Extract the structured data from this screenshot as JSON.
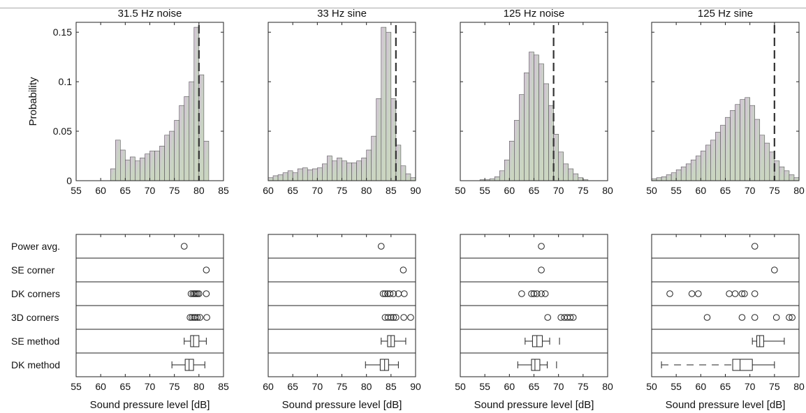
{
  "chart_data": [
    {
      "type": "bar",
      "title": "31.5 Hz noise",
      "ylabel": "Probability",
      "xlim": [
        55,
        85
      ],
      "ylim": [
        0,
        0.16
      ],
      "xticks": [
        55,
        60,
        65,
        70,
        75,
        80,
        85
      ],
      "yticks": [
        0,
        0.05,
        0.1,
        0.15
      ],
      "ytick_labels": [
        "0",
        "0.05",
        "0.1",
        "0.15"
      ],
      "bin_width": 1,
      "bins": [
        {
          "x": 55.5,
          "y": 0
        },
        {
          "x": 56.5,
          "y": 0
        },
        {
          "x": 57.5,
          "y": 0
        },
        {
          "x": 58.5,
          "y": 0
        },
        {
          "x": 59.5,
          "y": 0
        },
        {
          "x": 60.5,
          "y": 0
        },
        {
          "x": 61.5,
          "y": 0
        },
        {
          "x": 62.5,
          "y": 0.012
        },
        {
          "x": 63.5,
          "y": 0.041
        },
        {
          "x": 64.5,
          "y": 0.031
        },
        {
          "x": 65.5,
          "y": 0.021
        },
        {
          "x": 66.5,
          "y": 0.024
        },
        {
          "x": 67.5,
          "y": 0.02
        },
        {
          "x": 68.5,
          "y": 0.023
        },
        {
          "x": 69.5,
          "y": 0.027
        },
        {
          "x": 70.5,
          "y": 0.03
        },
        {
          "x": 71.5,
          "y": 0.03
        },
        {
          "x": 72.5,
          "y": 0.035
        },
        {
          "x": 73.5,
          "y": 0.046
        },
        {
          "x": 74.5,
          "y": 0.05
        },
        {
          "x": 75.5,
          "y": 0.061
        },
        {
          "x": 76.5,
          "y": 0.076
        },
        {
          "x": 77.5,
          "y": 0.085
        },
        {
          "x": 78.5,
          "y": 0.1
        },
        {
          "x": 79.5,
          "y": 0.155
        },
        {
          "x": 80.5,
          "y": 0.107
        },
        {
          "x": 81.5,
          "y": 0.04
        },
        {
          "x": 82.5,
          "y": 0
        },
        {
          "x": 83.5,
          "y": 0
        },
        {
          "x": 84.5,
          "y": 0
        }
      ],
      "dashed_line_x": 80,
      "box": {
        "xlabel": "Sound pressure level [dB]",
        "xlim": [
          55,
          85
        ],
        "xticks": [
          55,
          60,
          65,
          70,
          75,
          80,
          85
        ],
        "rows": [
          {
            "label": "Power avg.",
            "points": [
              77
            ]
          },
          {
            "label": "SE corner",
            "points": [
              81.5
            ]
          },
          {
            "label": "DK corners",
            "points": [
              78.4,
              78.8,
              79.1,
              79.4,
              79.7,
              80.0,
              81.5
            ]
          },
          {
            "label": "3D corners",
            "points": [
              78.2,
              78.6,
              79.0,
              79.3,
              79.7,
              80.2,
              81.6
            ]
          },
          {
            "label": "SE method",
            "box": {
              "whisker_low": 77,
              "q1": 78.3,
              "median": 78.9,
              "q3": 80,
              "whisker_high": 81.5
            }
          },
          {
            "label": "DK method",
            "box": {
              "whisker_low": 74.5,
              "q1": 77.2,
              "median": 78,
              "q3": 78.9,
              "whisker_high": 81.2
            }
          }
        ]
      }
    },
    {
      "type": "bar",
      "title": "33 Hz sine",
      "ylabel": "",
      "xlim": [
        60,
        90
      ],
      "ylim": [
        0,
        0.16
      ],
      "xticks": [
        60,
        65,
        70,
        75,
        80,
        85,
        90
      ],
      "yticks": [
        0,
        0.05,
        0.1,
        0.15
      ],
      "ytick_labels": [],
      "bin_width": 1,
      "bins": [
        {
          "x": 60.5,
          "y": 0.003
        },
        {
          "x": 61.5,
          "y": 0.005
        },
        {
          "x": 62.5,
          "y": 0.006
        },
        {
          "x": 63.5,
          "y": 0.008
        },
        {
          "x": 64.5,
          "y": 0.01
        },
        {
          "x": 65.5,
          "y": 0.008
        },
        {
          "x": 66.5,
          "y": 0.012
        },
        {
          "x": 67.5,
          "y": 0.013
        },
        {
          "x": 68.5,
          "y": 0.011
        },
        {
          "x": 69.5,
          "y": 0.012
        },
        {
          "x": 70.5,
          "y": 0.013
        },
        {
          "x": 71.5,
          "y": 0.017
        },
        {
          "x": 72.5,
          "y": 0.025
        },
        {
          "x": 73.5,
          "y": 0.02
        },
        {
          "x": 74.5,
          "y": 0.023
        },
        {
          "x": 75.5,
          "y": 0.02
        },
        {
          "x": 76.5,
          "y": 0.018
        },
        {
          "x": 77.5,
          "y": 0.018
        },
        {
          "x": 78.5,
          "y": 0.02
        },
        {
          "x": 79.5,
          "y": 0.023
        },
        {
          "x": 80.5,
          "y": 0.031
        },
        {
          "x": 81.5,
          "y": 0.045
        },
        {
          "x": 82.5,
          "y": 0.083
        },
        {
          "x": 83.5,
          "y": 0.155
        },
        {
          "x": 84.5,
          "y": 0.15
        },
        {
          "x": 85.5,
          "y": 0.083
        },
        {
          "x": 86.5,
          "y": 0.036
        },
        {
          "x": 87.5,
          "y": 0.015
        },
        {
          "x": 88.5,
          "y": 0.007
        },
        {
          "x": 89.5,
          "y": 0.003
        }
      ],
      "dashed_line_x": 86,
      "box": {
        "xlabel": "Sound pressure level [dB]",
        "xlim": [
          60,
          90
        ],
        "xticks": [
          60,
          65,
          70,
          75,
          80,
          85,
          90
        ],
        "rows": [
          {
            "label": "Power avg.",
            "points": [
              83
            ]
          },
          {
            "label": "SE corner",
            "points": [
              87.5
            ]
          },
          {
            "label": "DK corners",
            "points": [
              83.4,
              83.8,
              84.3,
              84.8,
              85.5,
              86.5,
              87.7
            ]
          },
          {
            "label": "3D corners",
            "points": [
              83.8,
              84.4,
              85.0,
              85.5,
              86.0,
              87.6,
              89.0
            ]
          },
          {
            "label": "SE method",
            "box": {
              "whisker_low": 83,
              "q1": 84.3,
              "median": 85,
              "q3": 85.7,
              "whisker_high": 88
            }
          },
          {
            "label": "DK method",
            "box": {
              "whisker_low": 79.8,
              "q1": 82.8,
              "median": 83.7,
              "q3": 84.5,
              "whisker_high": 86.5
            }
          }
        ]
      }
    },
    {
      "type": "bar",
      "title": "125 Hz noise",
      "ylabel": "",
      "xlim": [
        50,
        80
      ],
      "ylim": [
        0,
        0.16
      ],
      "xticks": [
        50,
        55,
        60,
        65,
        70,
        75,
        80
      ],
      "yticks": [
        0,
        0.05,
        0.1,
        0.15
      ],
      "ytick_labels": [],
      "bin_width": 1,
      "bins": [
        {
          "x": 54.5,
          "y": 0.001
        },
        {
          "x": 55.5,
          "y": 0.001
        },
        {
          "x": 56.5,
          "y": 0.002
        },
        {
          "x": 57.5,
          "y": 0.004
        },
        {
          "x": 58.5,
          "y": 0.01
        },
        {
          "x": 59.5,
          "y": 0.021
        },
        {
          "x": 60.5,
          "y": 0.04
        },
        {
          "x": 61.5,
          "y": 0.061
        },
        {
          "x": 62.5,
          "y": 0.087
        },
        {
          "x": 63.5,
          "y": 0.109
        },
        {
          "x": 64.5,
          "y": 0.13
        },
        {
          "x": 65.5,
          "y": 0.127
        },
        {
          "x": 66.5,
          "y": 0.118
        },
        {
          "x": 67.5,
          "y": 0.098
        },
        {
          "x": 68.5,
          "y": 0.076
        },
        {
          "x": 69.5,
          "y": 0.047
        },
        {
          "x": 70.5,
          "y": 0.029
        },
        {
          "x": 71.5,
          "y": 0.017
        },
        {
          "x": 72.5,
          "y": 0.012
        },
        {
          "x": 73.5,
          "y": 0.007
        },
        {
          "x": 74.5,
          "y": 0.003
        },
        {
          "x": 75.5,
          "y": 0.001
        }
      ],
      "dashed_line_x": 69,
      "box": {
        "xlabel": "Sound pressure level [dB]",
        "xlim": [
          50,
          80
        ],
        "xticks": [
          50,
          55,
          60,
          65,
          70,
          75,
          80
        ],
        "rows": [
          {
            "label": "Power avg.",
            "points": [
              66.5
            ]
          },
          {
            "label": "SE corner",
            "points": [
              66.5
            ]
          },
          {
            "label": "DK corners",
            "points": [
              62.5,
              64.5,
              65,
              65.6,
              66.5,
              67.3
            ]
          },
          {
            "label": "3D corners",
            "points": [
              67.8,
              70.5,
              71.2,
              71.8,
              72.4,
              73
            ]
          },
          {
            "label": "SE method",
            "box": {
              "whisker_low": 63.2,
              "q1": 64.7,
              "median": 65.6,
              "q3": 66.7,
              "whisker_high": 68.2,
              "outliers": [
                70.2
              ]
            }
          },
          {
            "label": "DK method",
            "box": {
              "whisker_low": 61.7,
              "q1": 64.5,
              "median": 65.2,
              "q3": 66.2,
              "whisker_high": 67.7,
              "outliers": [
                69.6
              ]
            }
          }
        ]
      }
    },
    {
      "type": "bar",
      "title": "125 Hz sine",
      "ylabel": "",
      "xlim": [
        50,
        80
      ],
      "ylim": [
        0,
        0.16
      ],
      "xticks": [
        50,
        55,
        60,
        65,
        70,
        75,
        80
      ],
      "yticks": [
        0,
        0.05,
        0.1,
        0.15
      ],
      "ytick_labels": [],
      "bin_width": 1,
      "bins": [
        {
          "x": 50.5,
          "y": 0.002
        },
        {
          "x": 51.5,
          "y": 0.003
        },
        {
          "x": 52.5,
          "y": 0.004
        },
        {
          "x": 53.5,
          "y": 0.006
        },
        {
          "x": 54.5,
          "y": 0.008
        },
        {
          "x": 55.5,
          "y": 0.011
        },
        {
          "x": 56.5,
          "y": 0.014
        },
        {
          "x": 57.5,
          "y": 0.017
        },
        {
          "x": 58.5,
          "y": 0.021
        },
        {
          "x": 59.5,
          "y": 0.025
        },
        {
          "x": 60.5,
          "y": 0.03
        },
        {
          "x": 61.5,
          "y": 0.036
        },
        {
          "x": 62.5,
          "y": 0.041
        },
        {
          "x": 63.5,
          "y": 0.049
        },
        {
          "x": 64.5,
          "y": 0.056
        },
        {
          "x": 65.5,
          "y": 0.064
        },
        {
          "x": 66.5,
          "y": 0.071
        },
        {
          "x": 67.5,
          "y": 0.077
        },
        {
          "x": 68.5,
          "y": 0.082
        },
        {
          "x": 69.5,
          "y": 0.084
        },
        {
          "x": 70.5,
          "y": 0.076
        },
        {
          "x": 71.5,
          "y": 0.062
        },
        {
          "x": 72.5,
          "y": 0.046
        },
        {
          "x": 73.5,
          "y": 0.038
        },
        {
          "x": 74.5,
          "y": 0.029
        },
        {
          "x": 75.5,
          "y": 0.02
        },
        {
          "x": 76.5,
          "y": 0.014
        },
        {
          "x": 77.5,
          "y": 0.01
        },
        {
          "x": 78.5,
          "y": 0.006
        },
        {
          "x": 79.5,
          "y": 0.003
        }
      ],
      "dashed_line_x": 75,
      "box": {
        "xlabel": "Sound pressure level [dB]",
        "xlim": [
          50,
          80
        ],
        "xticks": [
          50,
          55,
          60,
          65,
          70,
          75,
          80
        ],
        "rows": [
          {
            "label": "Power avg.",
            "points": [
              71
            ]
          },
          {
            "label": "SE corner",
            "points": [
              75
            ]
          },
          {
            "label": "DK corners",
            "points": [
              53.7,
              58.2,
              59.5,
              65.8,
              67,
              68.4,
              68.9,
              71
            ]
          },
          {
            "label": "3D corners",
            "points": [
              61.3,
              68.4,
              71,
              75.4,
              78,
              78.6
            ]
          },
          {
            "label": "SE method",
            "box": {
              "whisker_low": 70.5,
              "q1": 71.4,
              "median": 72,
              "q3": 72.8,
              "whisker_high": 77
            }
          },
          {
            "label": "DK method",
            "box": {
              "whisker_low": 52,
              "q1": 66.5,
              "median": 68,
              "q3": 70.5,
              "whisker_high": 75,
              "dashed_lower": true
            }
          }
        ]
      }
    }
  ]
}
